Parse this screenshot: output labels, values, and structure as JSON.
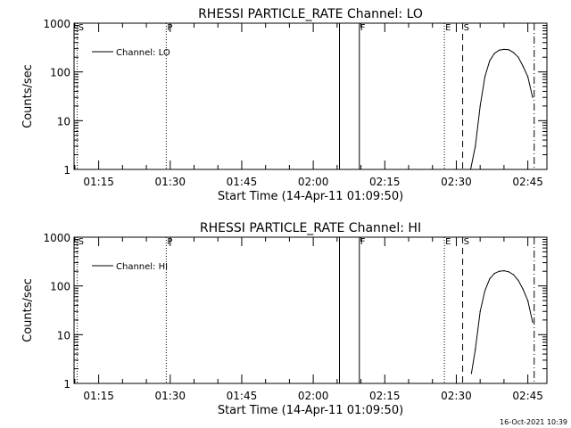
{
  "colors": {
    "background": "#ffffff",
    "ink": "#000000"
  },
  "footer": {
    "timestamp": "16-Oct-2021 10:39"
  },
  "chart_data": [
    {
      "type": "line",
      "title": "RHESSI PARTICLE_RATE Channel: LO",
      "xlabel": "Start Time (14-Apr-11 01:09:50)",
      "ylabel": "Counts/sec",
      "y_scale": "log",
      "ylim": [
        1,
        1000
      ],
      "xlim": [
        "01:09:50",
        "02:49:00"
      ],
      "x_ticks": [
        "01:15",
        "01:30",
        "01:45",
        "02:00",
        "02:15",
        "02:30",
        "02:45"
      ],
      "y_ticks": [
        "1",
        "10",
        "100",
        "1000"
      ],
      "grid": false,
      "legend": {
        "position": "top-left",
        "entries": [
          "Channel: LO"
        ]
      },
      "series": [
        {
          "name": "Channel: LO",
          "x": [
            "02:33:00",
            "02:34:00",
            "02:35:00",
            "02:36:00",
            "02:37:00",
            "02:38:00",
            "02:39:00",
            "02:40:00",
            "02:41:00",
            "02:42:00",
            "02:43:00",
            "02:44:00",
            "02:45:00",
            "02:46:00"
          ],
          "y": [
            1,
            3,
            20,
            80,
            170,
            240,
            280,
            290,
            285,
            250,
            200,
            130,
            80,
            30
          ]
        }
      ],
      "markers": [
        {
          "label": "S",
          "time": "01:10:30",
          "style": "dotted"
        },
        {
          "label": "P",
          "time": "01:29:10",
          "style": "dotted"
        },
        {
          "label": "",
          "time": "02:05:30",
          "style": "solid"
        },
        {
          "label": "F",
          "time": "02:09:40",
          "style": "solid"
        },
        {
          "label": "E",
          "time": "02:27:30",
          "style": "dotted"
        },
        {
          "label": "S",
          "time": "02:31:20",
          "style": "dashed"
        },
        {
          "label": "",
          "time": "02:46:20",
          "style": "dash-dot"
        }
      ]
    },
    {
      "type": "line",
      "title": "RHESSI PARTICLE_RATE Channel: HI",
      "xlabel": "Start Time (14-Apr-11 01:09:50)",
      "ylabel": "Counts/sec",
      "y_scale": "log",
      "ylim": [
        1,
        1000
      ],
      "xlim": [
        "01:09:50",
        "02:49:00"
      ],
      "x_ticks": [
        "01:15",
        "01:30",
        "01:45",
        "02:00",
        "02:15",
        "02:30",
        "02:45"
      ],
      "y_ticks": [
        "1",
        "10",
        "100",
        "1000"
      ],
      "grid": false,
      "legend": {
        "position": "top-left",
        "entries": [
          "Channel: HI"
        ]
      },
      "series": [
        {
          "name": "Channel: HI",
          "x": [
            "02:33:10",
            "02:34:00",
            "02:35:00",
            "02:36:00",
            "02:37:00",
            "02:38:00",
            "02:39:00",
            "02:40:00",
            "02:41:00",
            "02:42:00",
            "02:43:00",
            "02:44:00",
            "02:45:00",
            "02:46:00"
          ],
          "y": [
            1.6,
            5,
            30,
            80,
            140,
            180,
            200,
            205,
            195,
            170,
            130,
            85,
            50,
            18
          ]
        }
      ],
      "markers": [
        {
          "label": "S",
          "time": "01:10:30",
          "style": "dotted"
        },
        {
          "label": "P",
          "time": "01:29:10",
          "style": "dotted"
        },
        {
          "label": "",
          "time": "02:05:30",
          "style": "solid"
        },
        {
          "label": "F",
          "time": "02:09:40",
          "style": "solid"
        },
        {
          "label": "E",
          "time": "02:27:30",
          "style": "dotted"
        },
        {
          "label": "S",
          "time": "02:31:20",
          "style": "dashed"
        },
        {
          "label": "",
          "time": "02:46:20",
          "style": "dash-dot"
        }
      ]
    }
  ]
}
